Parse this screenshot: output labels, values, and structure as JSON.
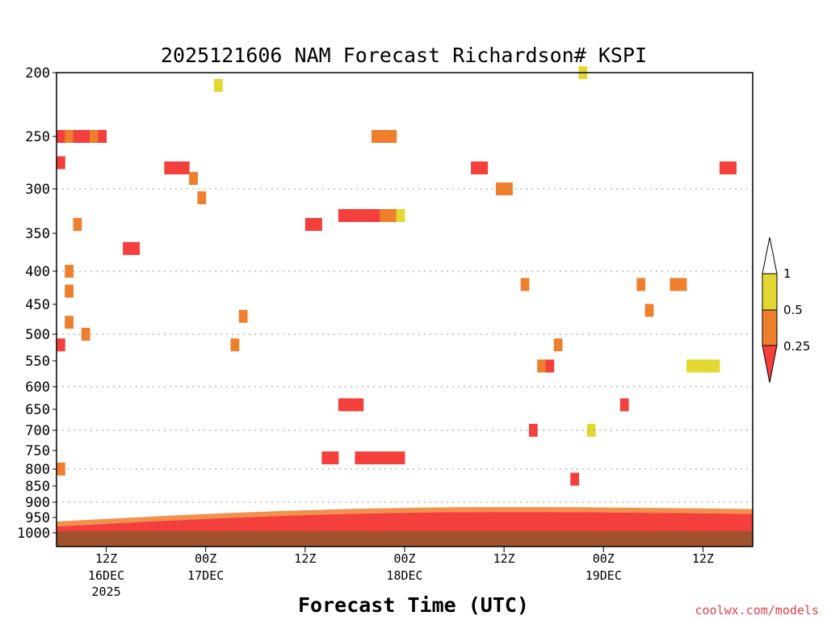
{
  "chart_data": {
    "type": "heatmap",
    "title": "2025121606 NAM Forecast Richardson# KSPI",
    "xlabel": "Forecast Time (UTC)",
    "ylabel": "",
    "y_axis": {
      "ticks": [
        "200",
        "250",
        "300",
        "350",
        "400",
        "450",
        "500",
        "550",
        "600",
        "650",
        "700",
        "750",
        "800",
        "850",
        "900",
        "950",
        "1000"
      ],
      "scale": "pressure (log-like), inverted",
      "dotted_gridlines_at": [
        "300",
        "400",
        "500",
        "600",
        "700",
        "800",
        "900"
      ]
    },
    "x_axis": {
      "ticks": [
        {
          "hour": "12Z",
          "date": "16DEC",
          "year": "2025"
        },
        {
          "hour": "00Z",
          "date": "17DEC",
          "year": ""
        },
        {
          "hour": "12Z",
          "date": "",
          "year": ""
        },
        {
          "hour": "00Z",
          "date": "18DEC",
          "year": ""
        },
        {
          "hour": "12Z",
          "date": "",
          "year": ""
        },
        {
          "hour": "00Z",
          "date": "19DEC",
          "year": ""
        },
        {
          "hour": "12Z",
          "date": "",
          "year": ""
        }
      ],
      "tick_forecast_hours": [
        6,
        18,
        30,
        42,
        54,
        66,
        78
      ],
      "range_forecast_hours": [
        0,
        84
      ]
    },
    "legend": {
      "placement": "right",
      "bins": [
        {
          "label": "1",
          "range": "> 1",
          "color": "#ffffff"
        },
        {
          "label": "0.5",
          "range": "0.5 - 1",
          "color": "#e3d832"
        },
        {
          "label": "0.25",
          "range": "0.25 - 0.5",
          "color": "#ee7f2d"
        },
        {
          "label": "",
          "range": "< 0.25",
          "color": "#f4403c"
        }
      ]
    },
    "surface_layer_color": "#a0522d",
    "cells": [
      {
        "h": 0,
        "p": 800,
        "bin": 2
      },
      {
        "h": 0,
        "p": 250,
        "bin": 3
      },
      {
        "h": 1,
        "p": 250,
        "bin": 2
      },
      {
        "h": 0,
        "p": 275,
        "bin": 3
      },
      {
        "h": 1,
        "p": 400,
        "bin": 2
      },
      {
        "h": 1,
        "p": 430,
        "bin": 2
      },
      {
        "h": 1,
        "p": 480,
        "bin": 2
      },
      {
        "h": 0,
        "p": 520,
        "bin": 3
      },
      {
        "h": 2,
        "p": 250,
        "bin": 3
      },
      {
        "h": 3,
        "p": 250,
        "bin": 3
      },
      {
        "h": 4,
        "p": 250,
        "bin": 2
      },
      {
        "h": 5,
        "p": 250,
        "bin": 3
      },
      {
        "h": 2,
        "p": 340,
        "bin": 2
      },
      {
        "h": 3,
        "p": 500,
        "bin": 2
      },
      {
        "h": 8,
        "p": 370,
        "bin": 3
      },
      {
        "h": 9,
        "p": 370,
        "bin": 3
      },
      {
        "h": 13,
        "p": 280,
        "bin": 3
      },
      {
        "h": 14,
        "p": 280,
        "bin": 3
      },
      {
        "h": 15,
        "p": 280,
        "bin": 3
      },
      {
        "h": 16,
        "p": 290,
        "bin": 2
      },
      {
        "h": 17,
        "p": 310,
        "bin": 2
      },
      {
        "h": 19,
        "p": 210,
        "bin": 1
      },
      {
        "h": 21,
        "p": 520,
        "bin": 2
      },
      {
        "h": 22,
        "p": 470,
        "bin": 2
      },
      {
        "h": 30,
        "p": 340,
        "bin": 3
      },
      {
        "h": 31,
        "p": 340,
        "bin": 3
      },
      {
        "h": 32,
        "p": 770,
        "bin": 3
      },
      {
        "h": 33,
        "p": 770,
        "bin": 3
      },
      {
        "h": 34,
        "p": 330,
        "bin": 3
      },
      {
        "h": 35,
        "p": 330,
        "bin": 3
      },
      {
        "h": 36,
        "p": 330,
        "bin": 3
      },
      {
        "h": 37,
        "p": 330,
        "bin": 3
      },
      {
        "h": 38,
        "p": 330,
        "bin": 3
      },
      {
        "h": 39,
        "p": 330,
        "bin": 2
      },
      {
        "h": 40,
        "p": 330,
        "bin": 2
      },
      {
        "h": 41,
        "p": 330,
        "bin": 1
      },
      {
        "h": 36,
        "p": 770,
        "bin": 3
      },
      {
        "h": 37,
        "p": 770,
        "bin": 3
      },
      {
        "h": 38,
        "p": 770,
        "bin": 3
      },
      {
        "h": 39,
        "p": 770,
        "bin": 3
      },
      {
        "h": 40,
        "p": 770,
        "bin": 3
      },
      {
        "h": 41,
        "p": 770,
        "bin": 3
      },
      {
        "h": 34,
        "p": 640,
        "bin": 3
      },
      {
        "h": 35,
        "p": 640,
        "bin": 3
      },
      {
        "h": 36,
        "p": 640,
        "bin": 3
      },
      {
        "h": 38,
        "p": 250,
        "bin": 2
      },
      {
        "h": 39,
        "p": 250,
        "bin": 2
      },
      {
        "h": 40,
        "p": 250,
        "bin": 2
      },
      {
        "h": 50,
        "p": 280,
        "bin": 3
      },
      {
        "h": 51,
        "p": 280,
        "bin": 3
      },
      {
        "h": 53,
        "p": 300,
        "bin": 2
      },
      {
        "h": 54,
        "p": 300,
        "bin": 2
      },
      {
        "h": 56,
        "p": 420,
        "bin": 2
      },
      {
        "h": 57,
        "p": 700,
        "bin": 3
      },
      {
        "h": 58,
        "p": 560,
        "bin": 2
      },
      {
        "h": 59,
        "p": 560,
        "bin": 3
      },
      {
        "h": 60,
        "p": 520,
        "bin": 2
      },
      {
        "h": 62,
        "p": 830,
        "bin": 3
      },
      {
        "h": 63,
        "p": 200,
        "bin": 1
      },
      {
        "h": 64,
        "p": 700,
        "bin": 1
      },
      {
        "h": 68,
        "p": 640,
        "bin": 3
      },
      {
        "h": 70,
        "p": 420,
        "bin": 2
      },
      {
        "h": 71,
        "p": 460,
        "bin": 2
      },
      {
        "h": 74,
        "p": 420,
        "bin": 2
      },
      {
        "h": 75,
        "p": 420,
        "bin": 2
      },
      {
        "h": 76,
        "p": 560,
        "bin": 1
      },
      {
        "h": 77,
        "p": 560,
        "bin": 1
      },
      {
        "h": 78,
        "p": 560,
        "bin": 1
      },
      {
        "h": 79,
        "p": 560,
        "bin": 1
      },
      {
        "h": 80,
        "p": 280,
        "bin": 3
      },
      {
        "h": 81,
        "p": 280,
        "bin": 3
      }
    ]
  },
  "credit": "coolwx.com/models",
  "colors": {
    "white_bin": "#ffffff",
    "yellow_bin": "#e3d832",
    "orange_bin": "#ee7f2d",
    "red_bin": "#f4403c",
    "surface": "#a0522d",
    "credit": "#e0404a"
  }
}
